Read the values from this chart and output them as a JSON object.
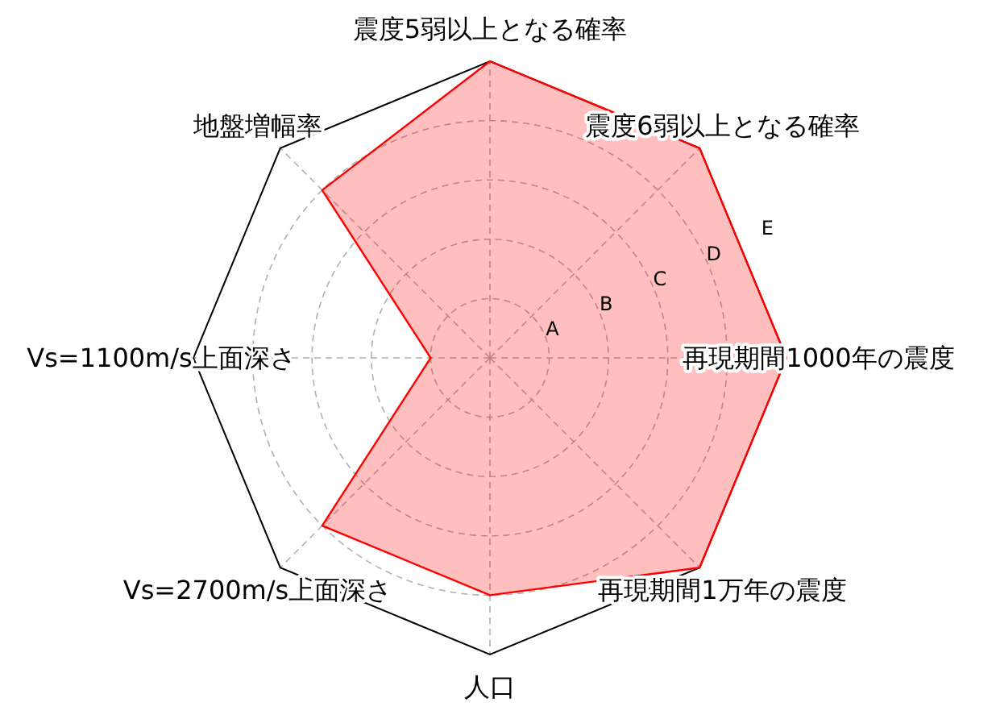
{
  "chart_data": {
    "type": "radar",
    "categories": [
      "震度5弱以上となる確率",
      "震度6弱以上となる確率",
      "再現期間1000年の震度",
      "再現期間1万年の震度",
      "人口",
      "Vs=2700m/s上面深さ",
      "Vs=1100m/s上面深さ",
      "地盤増幅率"
    ],
    "series": [
      {
        "color": "#ff0000",
        "values": [
          5,
          5,
          5,
          5,
          4,
          4,
          1,
          4
        ]
      }
    ],
    "ylim": [
      0,
      5
    ],
    "yticks": [
      {
        "value": 1,
        "label": "A"
      },
      {
        "value": 2,
        "label": "B"
      },
      {
        "value": 3,
        "label": "C"
      },
      {
        "value": 4,
        "label": "D"
      },
      {
        "value": 5,
        "label": "E"
      }
    ],
    "grid": true,
    "marker": "none",
    "line_style": "solid"
  }
}
